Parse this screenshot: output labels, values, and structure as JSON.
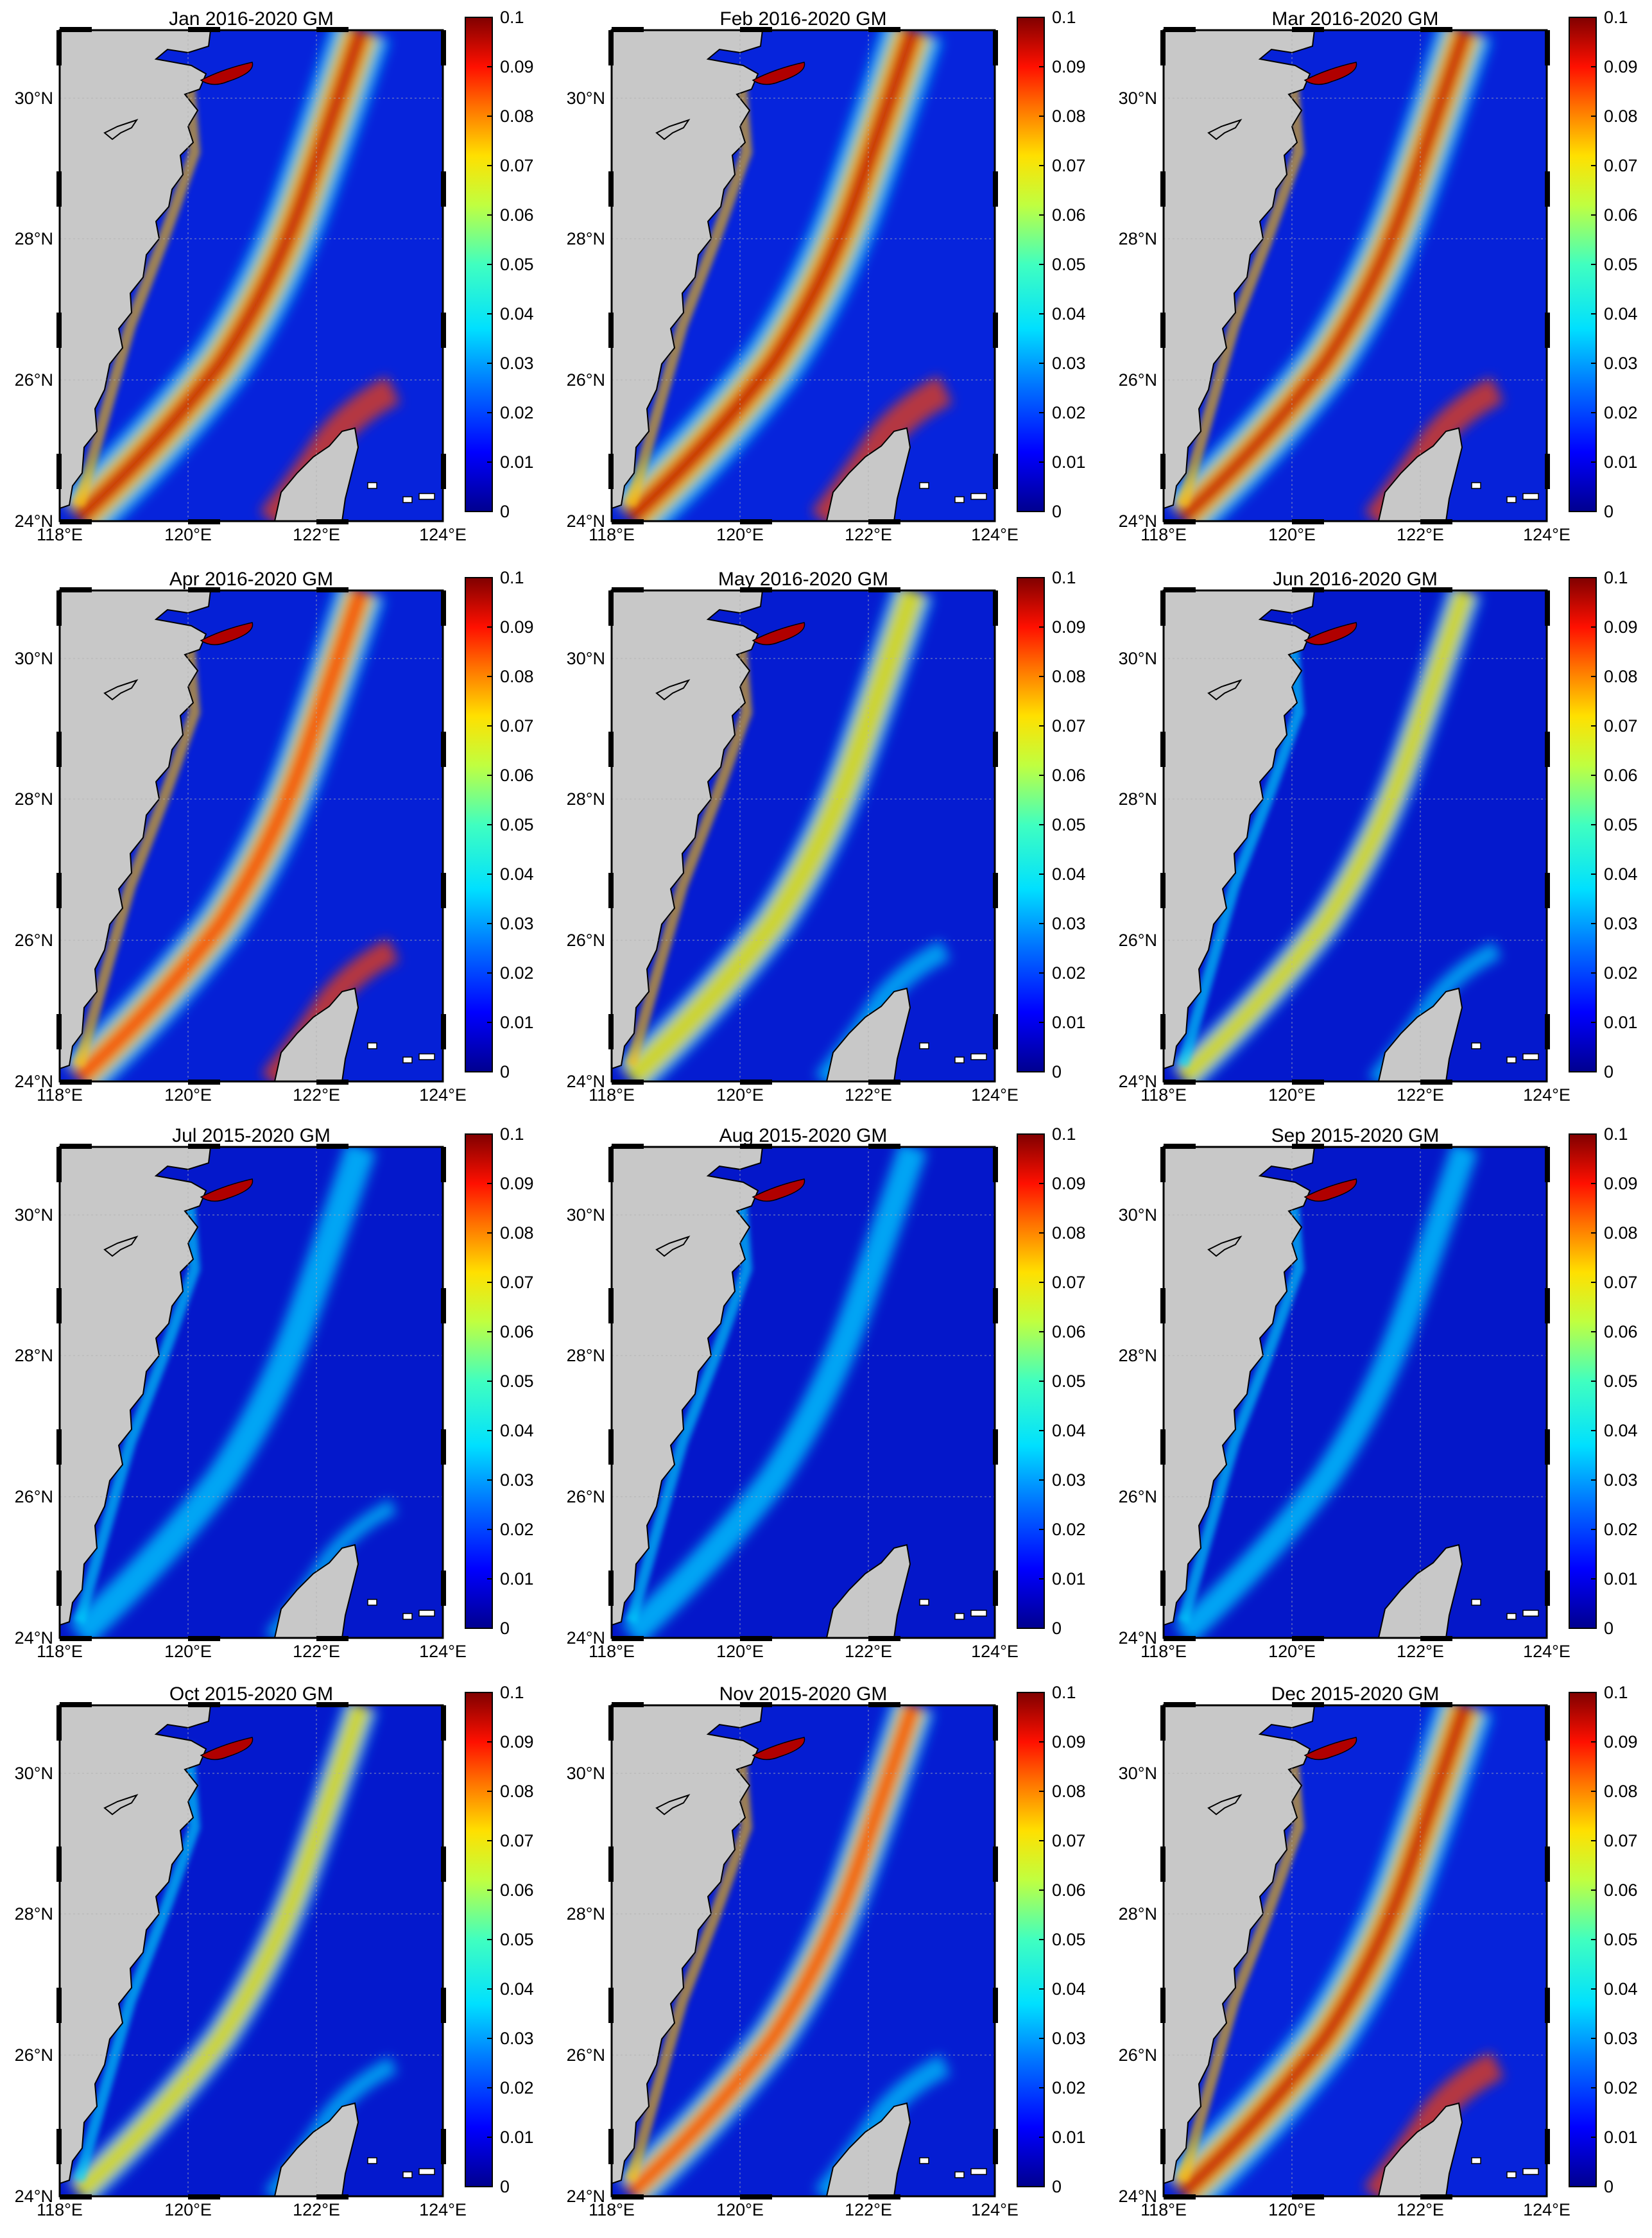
{
  "figure": {
    "colors": {
      "land": "#c8c8c8",
      "ocean_low": "#0000a8",
      "ocean_mid": "#0a3cff",
      "grid": "#b0b0b0",
      "frame": "#000000"
    },
    "lon_ticks": [
      "118°E",
      "120°E",
      "122°E",
      "124°E"
    ],
    "lat_ticks": [
      "24°N",
      "26°N",
      "28°N",
      "30°N"
    ],
    "colorbar": {
      "ticks": [
        "0.1",
        "0.09",
        "0.08",
        "0.07",
        "0.06",
        "0.05",
        "0.04",
        "0.03",
        "0.02",
        "0.01",
        "0"
      ],
      "range": [
        0,
        0.1
      ],
      "colormap": [
        "#00008f",
        "#0000ff",
        "#0080ff",
        "#00ffff",
        "#80ff80",
        "#ffff00",
        "#ff8000",
        "#ff0000",
        "#800000"
      ]
    },
    "panels": [
      {
        "title": "Jan 2016-2020 GM",
        "month": "Jan",
        "years": "2016-2020",
        "intensity": 0.95
      },
      {
        "title": "Feb 2016-2020 GM",
        "month": "Feb",
        "years": "2016-2020",
        "intensity": 1.0
      },
      {
        "title": "Mar 2016-2020 GM",
        "month": "Mar",
        "years": "2016-2020",
        "intensity": 0.85
      },
      {
        "title": "Apr 2016-2020 GM",
        "month": "Apr",
        "years": "2016-2020",
        "intensity": 0.7
      },
      {
        "title": "May 2016-2020 GM",
        "month": "May",
        "years": "2016-2020",
        "intensity": 0.5
      },
      {
        "title": "Jun 2016-2020 GM",
        "month": "Jun",
        "years": "2016-2020",
        "intensity": 0.3
      },
      {
        "title": "Jul 2015-2020 GM",
        "month": "Jul",
        "years": "2015-2020",
        "intensity": 0.2
      },
      {
        "title": "Aug 2015-2020 GM",
        "month": "Aug",
        "years": "2015-2020",
        "intensity": 0.15
      },
      {
        "title": "Sep 2015-2020 GM",
        "month": "Sep",
        "years": "2015-2020",
        "intensity": 0.1
      },
      {
        "title": "Oct 2015-2020 GM",
        "month": "Oct",
        "years": "2015-2020",
        "intensity": 0.3
      },
      {
        "title": "Nov 2015-2020 GM",
        "month": "Nov",
        "years": "2015-2020",
        "intensity": 0.55
      },
      {
        "title": "Dec 2015-2020 GM",
        "month": "Dec",
        "years": "2015-2020",
        "intensity": 0.9
      }
    ]
  }
}
